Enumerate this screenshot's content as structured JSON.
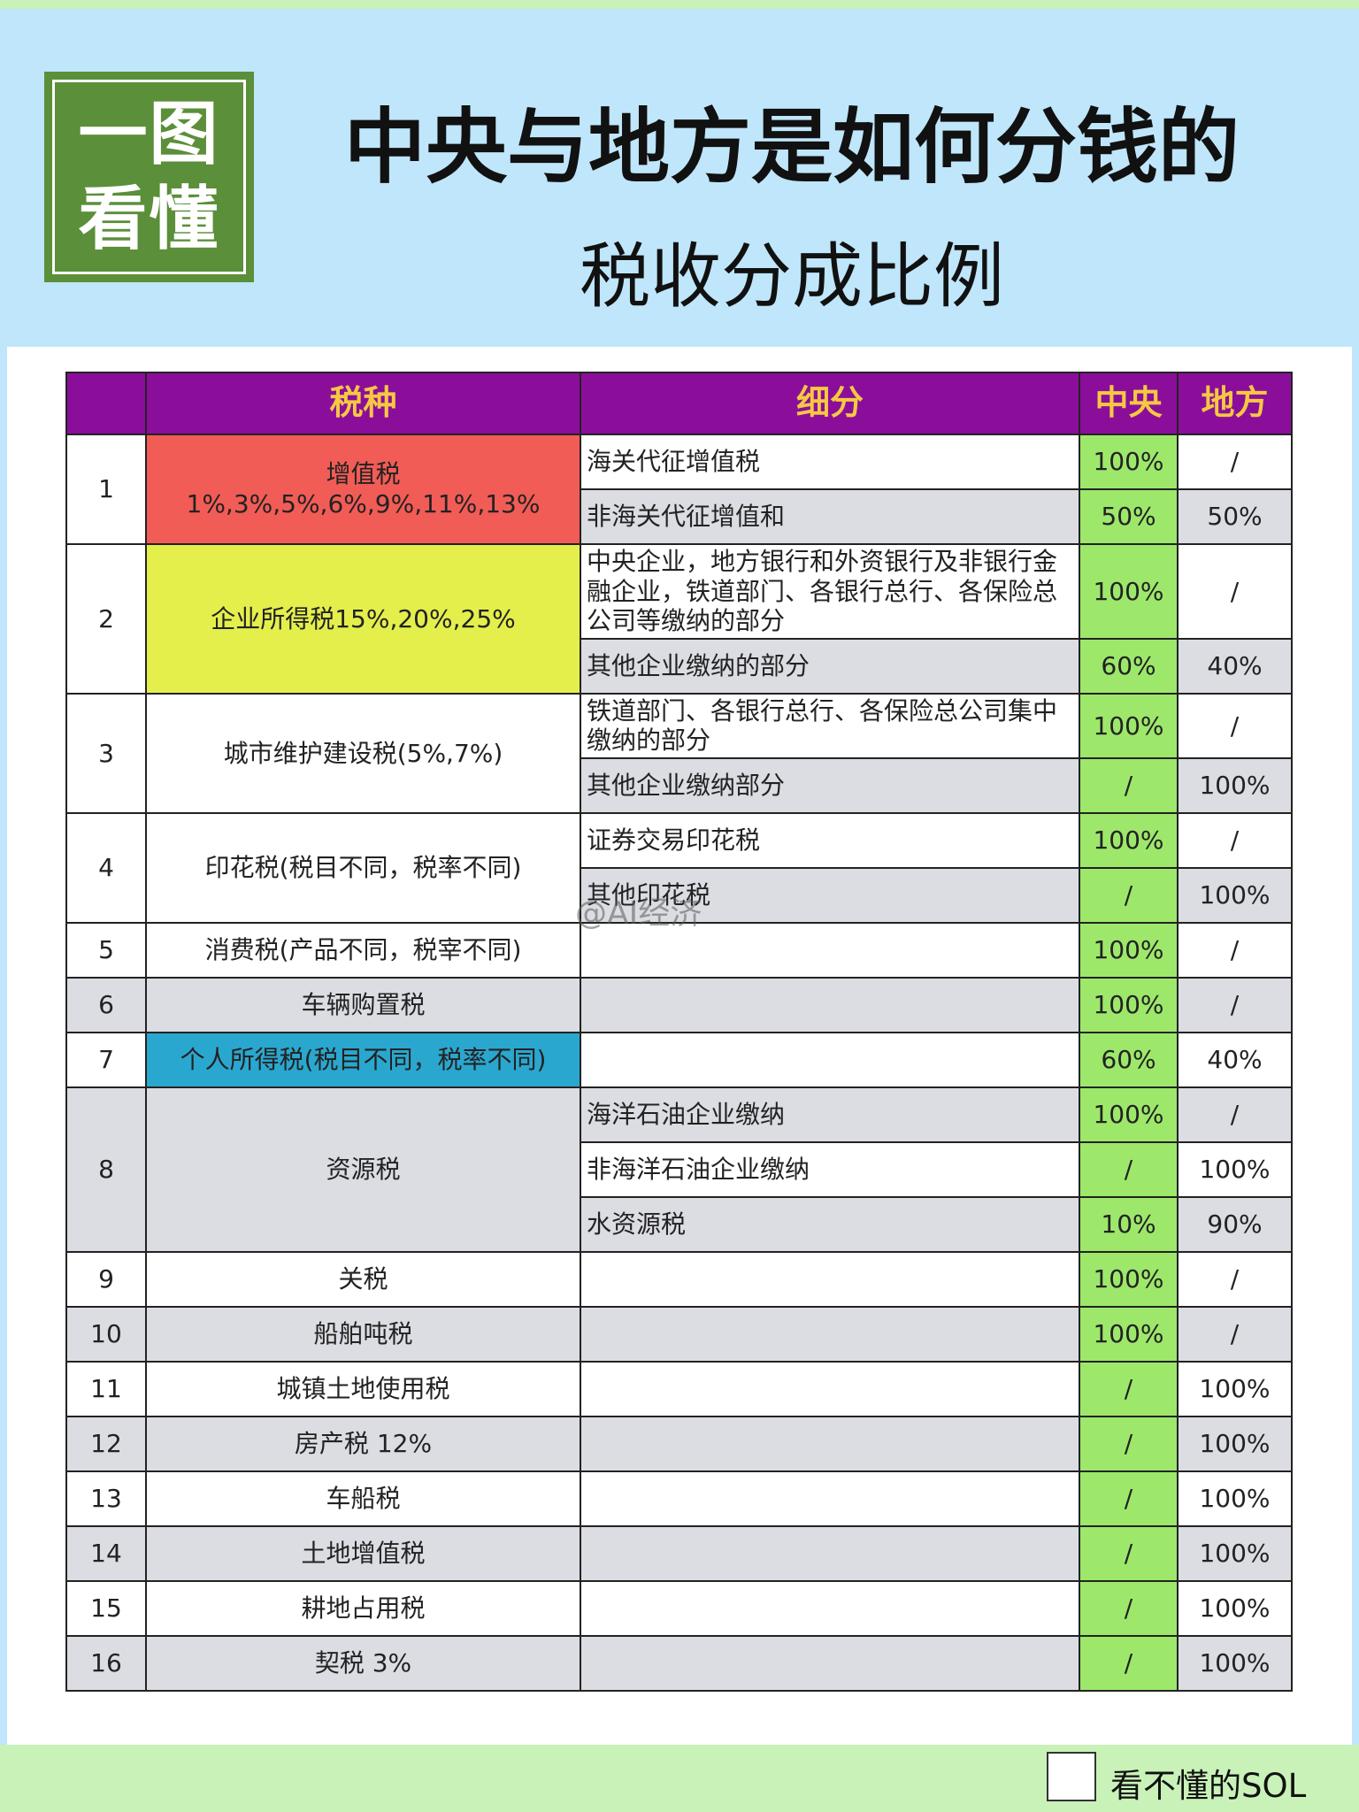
{
  "header": {
    "badge": [
      "一图",
      "看懂"
    ],
    "title": "中央与地方是如何分钱的",
    "subtitle": "税收分成比例"
  },
  "table": {
    "header": [
      "税种",
      "细分",
      "中央",
      "地方"
    ],
    "rows": [
      {
        "no": 1,
        "tax": "增值税",
        "rates": "1%,3%,5%,6%,9%,11%,13%",
        "color": "#f25c56",
        "parts": [
          {
            "detail": "海关代征增值税",
            "central": "100%",
            "local": "/"
          },
          {
            "detail": "非海关代征增值和",
            "central": "50%",
            "local": "50%"
          }
        ]
      },
      {
        "no": 2,
        "tax": "企业所得税15%,20%,25%",
        "color": "#e4ef4c",
        "parts": [
          {
            "detail": "中央企业，地方银行和外资银行及非银行金融企业，铁道部门、各银行总行、各保险总公司等缴纳的部分",
            "central": "100%",
            "local": "/"
          },
          {
            "detail": "其他企业缴纳的部分",
            "central": "60%",
            "local": "40%"
          }
        ]
      },
      {
        "no": 3,
        "tax": "城市维护建设税(5%,7%)",
        "parts": [
          {
            "detail": "铁道部门、各银行总行、各保险总公司集中缴纳的部分",
            "central": "100%",
            "local": "/"
          },
          {
            "detail": "其他企业缴纳部分",
            "central": "/",
            "local": "100%"
          }
        ]
      },
      {
        "no": 4,
        "tax": "印花税(税目不同，税率不同)",
        "parts": [
          {
            "detail": "证券交易印花税",
            "central": "100%",
            "local": "/"
          },
          {
            "detail": "其他印花税",
            "central": "/",
            "local": "100%"
          }
        ]
      },
      {
        "no": 5,
        "tax": "消费税(产品不同，税宰不同)",
        "parts": [
          {
            "central": "100%",
            "local": "/"
          }
        ]
      },
      {
        "no": 6,
        "tax": "车辆购置税",
        "parts": [
          {
            "central": "100%",
            "local": "/"
          }
        ]
      },
      {
        "no": 7,
        "tax": "个人所得税(税目不同，税率不同)",
        "color": "#2aa7cf",
        "parts": [
          {
            "central": "60%",
            "local": "40%"
          }
        ]
      },
      {
        "no": 8,
        "tax": "资源税",
        "parts": [
          {
            "detail": "海洋石油企业缴纳",
            "central": "100%",
            "local": "/"
          },
          {
            "detail": "非海洋石油企业缴纳",
            "central": "/",
            "local": "100%"
          },
          {
            "detail": "水资源税",
            "central": "10%",
            "local": "90%"
          }
        ]
      },
      {
        "no": 9,
        "tax": "关税",
        "parts": [
          {
            "central": "100%",
            "local": "/"
          }
        ]
      },
      {
        "no": 10,
        "tax": "船舶吨税",
        "parts": [
          {
            "central": "100%",
            "local": "/"
          }
        ]
      },
      {
        "no": 11,
        "tax": "城镇土地使用税",
        "parts": [
          {
            "central": "/",
            "local": "100%"
          }
        ]
      },
      {
        "no": 12,
        "tax": "房产税 12%",
        "parts": [
          {
            "central": "/",
            "local": "100%"
          }
        ]
      },
      {
        "no": 13,
        "tax": "车船税",
        "parts": [
          {
            "central": "/",
            "local": "100%"
          }
        ]
      },
      {
        "no": 14,
        "tax": "土地增值税",
        "parts": [
          {
            "central": "/",
            "local": "100%"
          }
        ]
      },
      {
        "no": 15,
        "tax": "耕地占用税",
        "parts": [
          {
            "central": "/",
            "local": "100%"
          }
        ]
      },
      {
        "no": 16,
        "tax": "契税 3%",
        "parts": [
          {
            "central": "/",
            "local": "100%"
          }
        ]
      }
    ]
  },
  "watermark": "@AI经济",
  "footer": "看不懂的SOL"
}
